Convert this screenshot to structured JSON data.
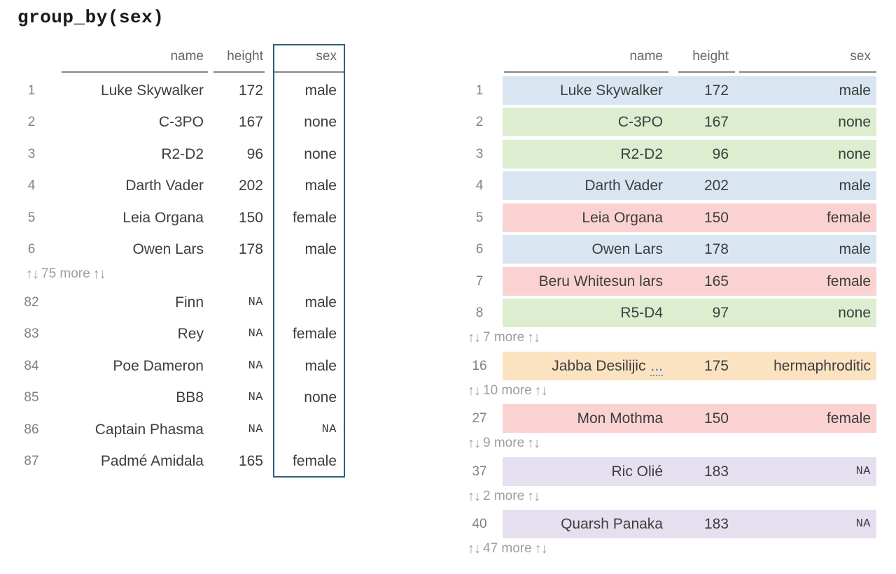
{
  "title": "group_by(sex)",
  "icons": {
    "sort_arrows": "↑↓"
  },
  "palette": {
    "male": "#d9e6f2",
    "none": "#dcedd0",
    "female": "#fbd2d2",
    "hermaphroditic": "#fbe3c2",
    "na": "#e6dff0",
    "highlight_border": "#2e5e7e",
    "header_line": "#858585"
  },
  "left_table": {
    "columns": [
      "name",
      "height",
      "sex"
    ],
    "rows": [
      {
        "num": "1",
        "name": "Luke Skywalker",
        "height": "172",
        "sex": "male"
      },
      {
        "num": "2",
        "name": "C-3PO",
        "height": "167",
        "sex": "none"
      },
      {
        "num": "3",
        "name": "R2-D2",
        "height": "96",
        "sex": "none"
      },
      {
        "num": "4",
        "name": "Darth Vader",
        "height": "202",
        "sex": "male"
      },
      {
        "num": "5",
        "name": "Leia Organa",
        "height": "150",
        "sex": "female"
      },
      {
        "num": "6",
        "name": "Owen Lars",
        "height": "178",
        "sex": "male"
      },
      {
        "num": "82",
        "name": "Finn",
        "height": "NA",
        "sex": "male"
      },
      {
        "num": "83",
        "name": "Rey",
        "height": "NA",
        "sex": "female"
      },
      {
        "num": "84",
        "name": "Poe Dameron",
        "height": "NA",
        "sex": "male"
      },
      {
        "num": "85",
        "name": "BB8",
        "height": "NA",
        "sex": "none"
      },
      {
        "num": "86",
        "name": "Captain Phasma",
        "height": "NA",
        "sex": "NA"
      },
      {
        "num": "87",
        "name": "Padmé Amidala",
        "height": "165",
        "sex": "female"
      }
    ],
    "separators": [
      "75 more"
    ]
  },
  "right_table": {
    "columns": [
      "name",
      "height",
      "sex"
    ],
    "rows": [
      {
        "num": "1",
        "name": "Luke Skywalker",
        "height": "172",
        "sex": "male",
        "group": "male"
      },
      {
        "num": "2",
        "name": "C-3PO",
        "height": "167",
        "sex": "none",
        "group": "none"
      },
      {
        "num": "3",
        "name": "R2-D2",
        "height": "96",
        "sex": "none",
        "group": "none"
      },
      {
        "num": "4",
        "name": "Darth Vader",
        "height": "202",
        "sex": "male",
        "group": "male"
      },
      {
        "num": "5",
        "name": "Leia Organa",
        "height": "150",
        "sex": "female",
        "group": "female"
      },
      {
        "num": "6",
        "name": "Owen Lars",
        "height": "178",
        "sex": "male",
        "group": "male"
      },
      {
        "num": "7",
        "name": "Beru Whitesun lars",
        "height": "165",
        "sex": "female",
        "group": "female"
      },
      {
        "num": "8",
        "name": "R5-D4",
        "height": "97",
        "sex": "none",
        "group": "none"
      },
      {
        "num": "16",
        "name": "Jabba Desilijic",
        "name_trunc": "...",
        "height": "175",
        "sex": "hermaphroditic",
        "group": "hermaphroditic"
      },
      {
        "num": "27",
        "name": "Mon Mothma",
        "height": "150",
        "sex": "female",
        "group": "female"
      },
      {
        "num": "37",
        "name": "Ric Olié",
        "height": "183",
        "sex": "NA",
        "group": "na"
      },
      {
        "num": "40",
        "name": "Quarsh Panaka",
        "height": "183",
        "sex": "NA",
        "group": "na"
      }
    ],
    "separators": [
      "7 more",
      "10 more",
      "9 more",
      "2 more",
      "47 more"
    ]
  }
}
